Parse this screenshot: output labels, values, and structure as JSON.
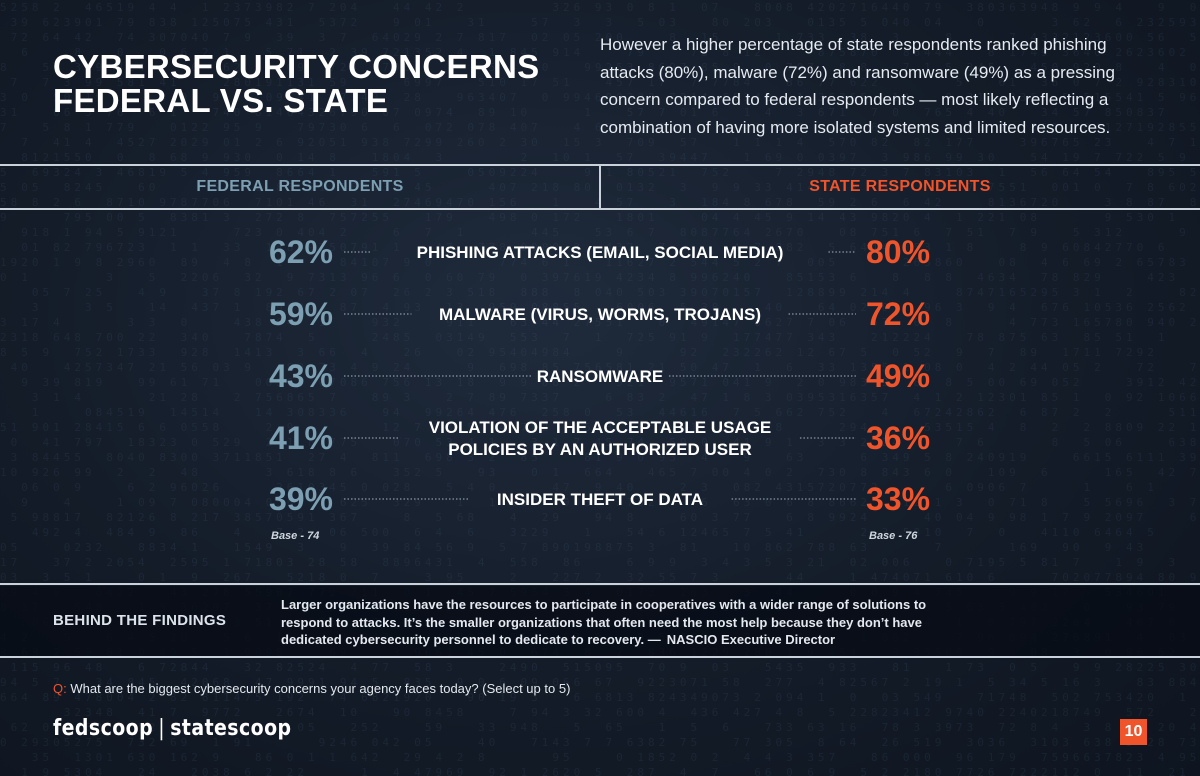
{
  "header": {
    "title_line1": "CYBERSECURITY CONCERNS",
    "title_line2": "FEDERAL VS. STATE",
    "intro": "However a higher percentage of state respondents ranked phishing attacks (80%), malware (72%) and ransomware (49%) as a pressing concern compared to federal respondents — most likely reflecting a combination of having more isolated systems and limited resources."
  },
  "columns": {
    "federal": "FEDERAL RESPONDENTS",
    "state": "STATE RESPONDENTS"
  },
  "chart_data": {
    "type": "table",
    "title": "CYBERSECURITY CONCERNS FEDERAL VS. STATE",
    "categories": [
      [
        "PHISHING ATTACKS (EMAIL, SOCIAL MEDIA)"
      ],
      [
        "MALWARE (VIRUS, WORMS, TROJANS)"
      ],
      [
        "RANSOMWARE"
      ],
      [
        "VIOLATION OF THE ACCEPTABLE USAGE",
        "POLICIES BY AN AUTHORIZED USER"
      ],
      [
        "INSIDER THEFT OF DATA"
      ]
    ],
    "series": [
      {
        "name": "FEDERAL RESPONDENTS",
        "values": [
          62,
          59,
          43,
          41,
          39
        ],
        "color": "#7c9fb2",
        "base": "Base - 74"
      },
      {
        "name": "STATE RESPONDENTS",
        "values": [
          80,
          72,
          49,
          36,
          33
        ],
        "color": "#f0542b",
        "base": "Base - 76"
      }
    ],
    "unit": "%"
  },
  "findings": {
    "label": "BEHIND THE FINDINGS",
    "text": "Larger organizations have the resources to participate in cooperatives with a wider range of solutions to respond to attacks. It’s the smaller organizations that often need the most help because they don’t have dedicated cybersecurity personnel to dedicate to recovery. —",
    "attribution": "NASCIO Executive Director"
  },
  "question": {
    "prefix": "Q:",
    "text": "What are the biggest cybersecurity concerns your agency faces today? (Select up to 5)"
  },
  "footer": {
    "logo_left": "fedscoop",
    "logo_sep": "|",
    "logo_right": "statescoop",
    "page_number": "10"
  },
  "colors": {
    "federal": "#7c9fb2",
    "state": "#f0542b",
    "background": "#141c29"
  }
}
